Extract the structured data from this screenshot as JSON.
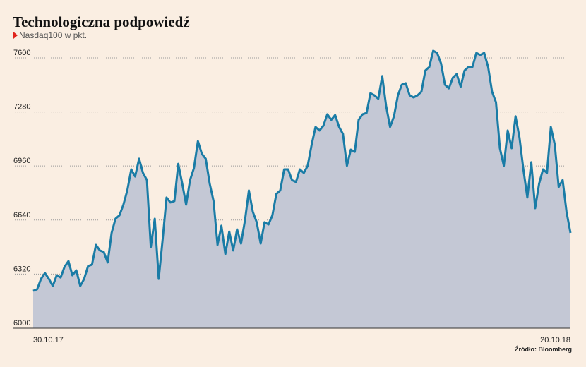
{
  "chart_data": {
    "type": "area",
    "title": "Technologiczna podpowiedź",
    "subtitle": "Nasdaq100 w pkt.",
    "source": "Źródło: Bloomberg",
    "line_color": "#1a7ca6",
    "fill_color": "#c4c8d5",
    "grid": true,
    "ylim": [
      6000,
      7650
    ],
    "yticks": [
      6000,
      6320,
      6640,
      6960,
      7280,
      7600
    ],
    "categories": [
      "30.10.17",
      null,
      null,
      null,
      null,
      null,
      null,
      null,
      null,
      null,
      null,
      null,
      null,
      null,
      null,
      null,
      null,
      null,
      null,
      null,
      null,
      null,
      null,
      null,
      null,
      null,
      null,
      null,
      null,
      null,
      null,
      null,
      null,
      null,
      null,
      null,
      null,
      null,
      null,
      null,
      null,
      null,
      null,
      null,
      null,
      null,
      null,
      null,
      null,
      null,
      null,
      null,
      null,
      null,
      null,
      null,
      null,
      null,
      null,
      null,
      null,
      null,
      null,
      null,
      null,
      null,
      null,
      null,
      null,
      null,
      null,
      null,
      null,
      null,
      null,
      null,
      null,
      null,
      null,
      null,
      null,
      null,
      null,
      null,
      null,
      null,
      null,
      null,
      null,
      null,
      null,
      null,
      null,
      null,
      null,
      null,
      null,
      null,
      null,
      null,
      null,
      null,
      null,
      null,
      null,
      null,
      null,
      null,
      null,
      null,
      null,
      null,
      null,
      null,
      null,
      null,
      null,
      null,
      null,
      null,
      null,
      null,
      null,
      null,
      null,
      null,
      null,
      null,
      null,
      null,
      null,
      null,
      null,
      null,
      null,
      null,
      null,
      "20.10.18"
    ],
    "values": [
      6221,
      6230,
      6292,
      6326,
      6292,
      6250,
      6313,
      6300,
      6363,
      6397,
      6313,
      6342,
      6250,
      6292,
      6368,
      6376,
      6493,
      6460,
      6451,
      6389,
      6564,
      6648,
      6668,
      6731,
      6815,
      6940,
      6898,
      7003,
      6919,
      6877,
      6480,
      6648,
      6292,
      6522,
      6773,
      6744,
      6752,
      6973,
      6856,
      6731,
      6877,
      6948,
      7107,
      7032,
      7003,
      6856,
      6752,
      6493,
      6606,
      6439,
      6572,
      6460,
      6585,
      6501,
      6639,
      6815,
      6689,
      6627,
      6501,
      6627,
      6614,
      6668,
      6794,
      6815,
      6940,
      6940,
      6877,
      6865,
      6940,
      6919,
      6961,
      7086,
      7191,
      7170,
      7199,
      7266,
      7233,
      7262,
      7191,
      7149,
      6961,
      7057,
      7044,
      7233,
      7266,
      7274,
      7391,
      7378,
      7358,
      7492,
      7316,
      7191,
      7254,
      7378,
      7441,
      7450,
      7378,
      7366,
      7378,
      7400,
      7525,
      7546,
      7642,
      7629,
      7567,
      7441,
      7420,
      7483,
      7504,
      7429,
      7525,
      7546,
      7546,
      7629,
      7617,
      7629,
      7546,
      7400,
      7337,
      7065,
      6961,
      7170,
      7065,
      7254,
      7128,
      6940,
      6773,
      6982,
      6710,
      6856,
      6940,
      6919,
      7191,
      7086,
      6836,
      6877,
      6689,
      6564
    ]
  }
}
